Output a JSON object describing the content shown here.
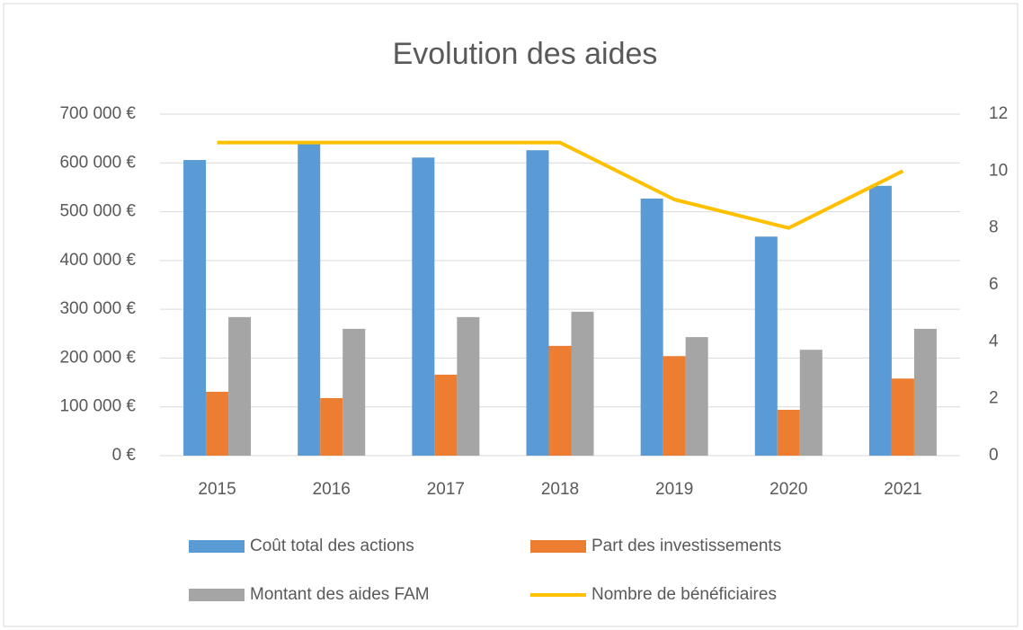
{
  "chart_data": {
    "type": "bar",
    "title": "Evolution des aides",
    "categories": [
      "2015",
      "2016",
      "2017",
      "2018",
      "2019",
      "2020",
      "2021"
    ],
    "series": [
      {
        "name": "Coût total des actions",
        "color": "#5b9bd5",
        "type": "bar",
        "values": [
          606000,
          639000,
          611000,
          626000,
          527000,
          449000,
          553000
        ]
      },
      {
        "name": "Part  des  investissements",
        "color": "#ed7d31",
        "type": "bar",
        "values": [
          131000,
          118000,
          166000,
          225000,
          204000,
          94000,
          158000
        ]
      },
      {
        "name": "Montant des aides FAM",
        "color": "#a5a5a5",
        "type": "bar",
        "values": [
          284000,
          260000,
          284000,
          295000,
          243000,
          217000,
          260000
        ]
      },
      {
        "name": "Nombre de bénéficiaires",
        "color": "#ffc000",
        "type": "line",
        "axis": "y2",
        "values": [
          11,
          11,
          11,
          11,
          9,
          8,
          10
        ]
      }
    ],
    "ylim": [
      0,
      700000
    ],
    "yticks": [
      {
        "value": 0,
        "label": "0 €"
      },
      {
        "value": 100000,
        "label": "100 000 €"
      },
      {
        "value": 200000,
        "label": "200 000 €"
      },
      {
        "value": 300000,
        "label": "300 000 €"
      },
      {
        "value": 400000,
        "label": "400 000 €"
      },
      {
        "value": 500000,
        "label": "500 000 €"
      },
      {
        "value": 600000,
        "label": "600 000 €"
      },
      {
        "value": 700000,
        "label": "700 000 €"
      }
    ],
    "y2lim": [
      0,
      12
    ],
    "y2ticks": [
      0,
      2,
      4,
      6,
      8,
      10,
      12
    ],
    "grid": true
  }
}
